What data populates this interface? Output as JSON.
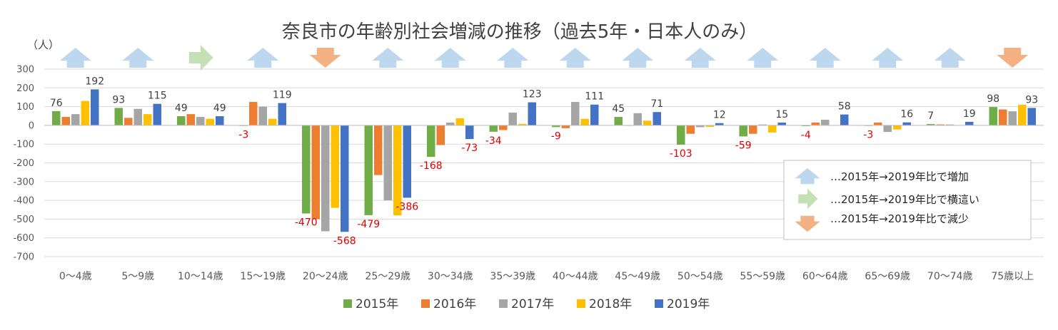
{
  "chart_data": {
    "type": "bar",
    "title": "奈良市の年齢別社会増減の推移（過去5年・日本人のみ）",
    "ylabel": "（人）",
    "ylim": [
      -700,
      300
    ],
    "yticks": [
      300,
      200,
      100,
      0,
      -100,
      -200,
      -300,
      -400,
      -500,
      -600,
      -700
    ],
    "grid": true,
    "legend_position": "bottom",
    "categories": [
      "0～4歳",
      "5～9歳",
      "10～14歳",
      "15～19歳",
      "20～24歳",
      "25～29歳",
      "30～34歳",
      "35～39歳",
      "40～44歳",
      "45～49歳",
      "50～54歳",
      "55～59歳",
      "60～64歳",
      "65～69歳",
      "70～74歳",
      "75歳以上"
    ],
    "series": [
      {
        "name": "2015年",
        "color": "#70ad47",
        "values": [
          76,
          93,
          49,
          -3,
          -470,
          -479,
          -168,
          -34,
          -9,
          45,
          -103,
          -59,
          -4,
          -3,
          7,
          98
        ]
      },
      {
        "name": "2016年",
        "color": "#ed7d31",
        "values": [
          45,
          40,
          60,
          125,
          -500,
          -265,
          -105,
          -25,
          -15,
          0,
          -45,
          -45,
          15,
          15,
          5,
          85
        ]
      },
      {
        "name": "2017年",
        "color": "#a5a5a5",
        "values": [
          60,
          88,
          45,
          100,
          -565,
          -400,
          15,
          68,
          125,
          65,
          -10,
          5,
          30,
          -35,
          5,
          75
        ]
      },
      {
        "name": "2018年",
        "color": "#ffc000",
        "values": [
          130,
          60,
          35,
          35,
          -440,
          -480,
          38,
          8,
          35,
          25,
          -8,
          -38,
          -2,
          -22,
          0,
          110
        ]
      },
      {
        "name": "2019年",
        "color": "#4472c4",
        "values": [
          192,
          115,
          49,
          119,
          -568,
          -386,
          -73,
          123,
          111,
          71,
          12,
          15,
          58,
          16,
          19,
          93
        ]
      }
    ],
    "labels": [
      {
        "category": 0,
        "series": 0,
        "text": "76",
        "color": "#404040"
      },
      {
        "category": 0,
        "series": 4,
        "text": "192",
        "color": "#404040"
      },
      {
        "category": 1,
        "series": 0,
        "text": "93",
        "color": "#404040"
      },
      {
        "category": 1,
        "series": 4,
        "text": "115",
        "color": "#404040"
      },
      {
        "category": 2,
        "series": 0,
        "text": "49",
        "color": "#404040"
      },
      {
        "category": 2,
        "series": 4,
        "text": "49",
        "color": "#404040"
      },
      {
        "category": 3,
        "series": 0,
        "text": "-3",
        "color": "#e00000"
      },
      {
        "category": 3,
        "series": 4,
        "text": "119",
        "color": "#404040"
      },
      {
        "category": 4,
        "series": 0,
        "text": "-470",
        "color": "#e00000"
      },
      {
        "category": 4,
        "series": 4,
        "text": "-568",
        "color": "#e00000"
      },
      {
        "category": 5,
        "series": 0,
        "text": "-479",
        "color": "#e00000"
      },
      {
        "category": 5,
        "series": 4,
        "text": "-386",
        "color": "#e00000"
      },
      {
        "category": 6,
        "series": 0,
        "text": "-168",
        "color": "#e00000"
      },
      {
        "category": 6,
        "series": 4,
        "text": "-73",
        "color": "#e00000"
      },
      {
        "category": 7,
        "series": 0,
        "text": "-34",
        "color": "#e00000"
      },
      {
        "category": 7,
        "series": 4,
        "text": "123",
        "color": "#404040"
      },
      {
        "category": 8,
        "series": 0,
        "text": "-9",
        "color": "#e00000"
      },
      {
        "category": 8,
        "series": 4,
        "text": "111",
        "color": "#404040"
      },
      {
        "category": 9,
        "series": 0,
        "text": "45",
        "color": "#404040"
      },
      {
        "category": 9,
        "series": 4,
        "text": "71",
        "color": "#404040"
      },
      {
        "category": 10,
        "series": 0,
        "text": "-103",
        "color": "#e00000"
      },
      {
        "category": 10,
        "series": 4,
        "text": "12",
        "color": "#404040"
      },
      {
        "category": 11,
        "series": 0,
        "text": "-59",
        "color": "#e00000"
      },
      {
        "category": 11,
        "series": 4,
        "text": "15",
        "color": "#404040"
      },
      {
        "category": 12,
        "series": 0,
        "text": "-4",
        "color": "#e00000"
      },
      {
        "category": 12,
        "series": 4,
        "text": "58",
        "color": "#404040"
      },
      {
        "category": 13,
        "series": 0,
        "text": "-3",
        "color": "#e00000"
      },
      {
        "category": 13,
        "series": 4,
        "text": "16",
        "color": "#404040"
      },
      {
        "category": 14,
        "series": 0,
        "text": "7",
        "color": "#404040"
      },
      {
        "category": 14,
        "series": 4,
        "text": "19",
        "color": "#404040"
      },
      {
        "category": 15,
        "series": 0,
        "text": "98",
        "color": "#404040"
      },
      {
        "category": 15,
        "series": 4,
        "text": "93",
        "color": "#404040"
      }
    ],
    "trend_arrows": [
      "up",
      "up",
      "flat",
      "up",
      "down",
      "up",
      "up",
      "up",
      "up",
      "up",
      "up",
      "up",
      "up",
      "up",
      "up",
      "down"
    ],
    "arrow_key": [
      {
        "type": "up",
        "text": "…2015年→2019年比で増加",
        "color": "#bdd7ee"
      },
      {
        "type": "flat",
        "text": "…2015年→2019年比で横這い",
        "color": "#c5e0b4"
      },
      {
        "type": "down",
        "text": "…2015年→2019年比で減少",
        "color": "#f4b183"
      }
    ]
  }
}
